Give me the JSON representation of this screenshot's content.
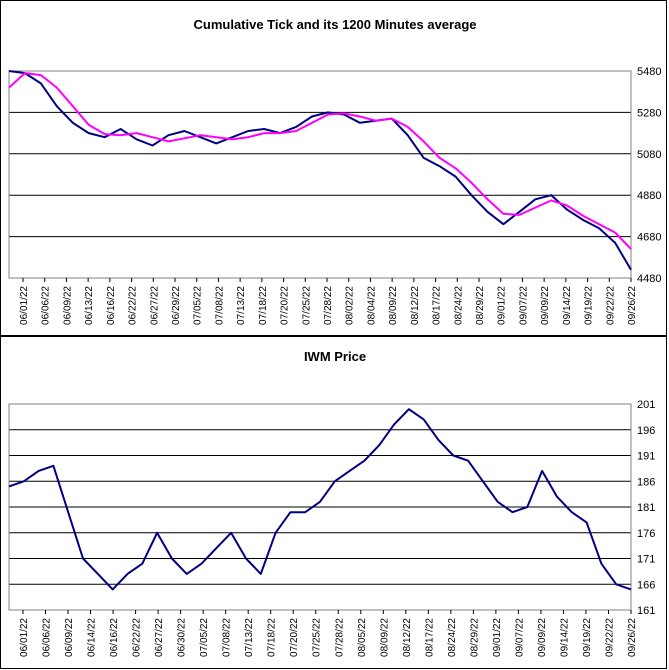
{
  "colors": {
    "series_main": "#000080",
    "series_average": "#ff00ff",
    "grid": "#000000",
    "background": "#ffffff"
  },
  "chart_data": [
    {
      "type": "line",
      "title": "Cumulative Tick and its 1200 Minutes average",
      "xlabel": "",
      "ylabel": "",
      "ylim": [
        4480,
        5480
      ],
      "y_ticks": [
        "5480",
        "5280",
        "5080",
        "4880",
        "4680",
        "4480"
      ],
      "y_axis_side": "right",
      "grid": "horizontal",
      "x_tick_labels": [
        "06/01/22",
        "06/06/22",
        "06/09/22",
        "06/13/22",
        "06/16/22",
        "06/22/22",
        "06/27/22",
        "06/29/22",
        "07/05/22",
        "07/08/22",
        "07/13/22",
        "07/18/22",
        "07/20/22",
        "07/25/22",
        "07/28/22",
        "08/02/22",
        "08/04/22",
        "08/09/22",
        "08/12/22",
        "08/17/22",
        "08/24/22",
        "08/29/22",
        "09/01/22",
        "09/07/22",
        "09/09/22",
        "09/14/22",
        "09/19/22",
        "09/22/22",
        "09/26/22"
      ],
      "series": [
        {
          "values": [
            5480,
            5470,
            5420,
            5310,
            5230,
            5180,
            5160,
            5200,
            5150,
            5120,
            5170,
            5190,
            5160,
            5130,
            5160,
            5190,
            5200,
            5180,
            5210,
            5260,
            5280,
            5270,
            5230,
            5240,
            5250,
            5170,
            5060,
            5020,
            4970,
            4880,
            4800,
            4740,
            4800,
            4860,
            4880,
            4810,
            4760,
            4720,
            4650,
            4520
          ]
        },
        {
          "values": [
            5400,
            5470,
            5460,
            5400,
            5310,
            5220,
            5175,
            5170,
            5180,
            5160,
            5140,
            5155,
            5170,
            5160,
            5150,
            5160,
            5180,
            5180,
            5190,
            5230,
            5270,
            5275,
            5260,
            5240,
            5250,
            5210,
            5140,
            5060,
            5010,
            4940,
            4860,
            4790,
            4785,
            4820,
            4855,
            4830,
            4780,
            4740,
            4700,
            4620
          ]
        }
      ]
    },
    {
      "type": "line",
      "title": "IWM Price",
      "xlabel": "",
      "ylabel": "",
      "ylim": [
        161,
        201
      ],
      "y_ticks": [
        "201",
        "196",
        "191",
        "186",
        "181",
        "176",
        "171",
        "166",
        "161"
      ],
      "y_axis_side": "right",
      "grid": "horizontal",
      "x_tick_labels": [
        "06/01/22",
        "06/06/22",
        "06/09/22",
        "06/14/22",
        "06/16/22",
        "06/22/22",
        "06/27/22",
        "06/30/22",
        "07/05/22",
        "07/08/22",
        "07/13/22",
        "07/18/22",
        "07/20/22",
        "07/25/22",
        "07/28/22",
        "08/05/22",
        "08/09/22",
        "08/12/22",
        "08/17/22",
        "08/24/22",
        "08/29/22",
        "09/01/22",
        "09/07/22",
        "09/09/22",
        "09/14/22",
        "09/19/22",
        "09/22/22",
        "09/26/22"
      ],
      "series": [
        {
          "values": [
            185,
            186,
            188,
            189,
            180,
            171,
            168,
            165,
            168,
            170,
            176,
            171,
            168,
            170,
            173,
            176,
            171,
            168,
            176,
            180,
            180,
            182,
            186,
            188,
            190,
            193,
            197,
            200,
            198,
            194,
            191,
            190,
            186,
            182,
            180,
            181,
            188,
            183,
            180,
            178,
            170,
            166,
            165
          ]
        }
      ]
    }
  ]
}
